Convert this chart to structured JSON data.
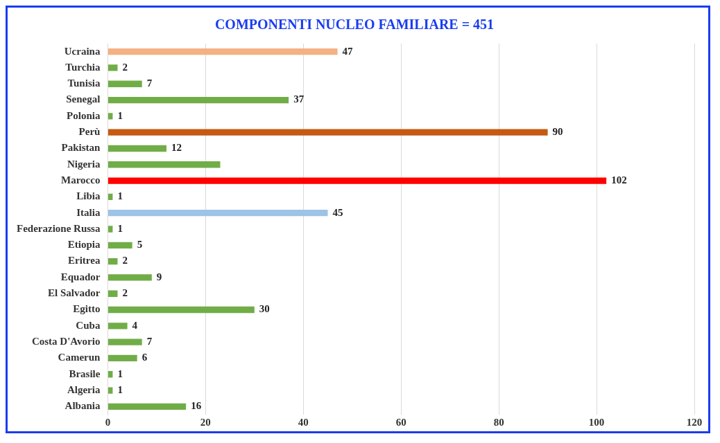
{
  "chart_data": {
    "type": "bar",
    "orientation": "horizontal",
    "title": "COMPONENTI NUCLEO FAMILIARE = 451",
    "categories": [
      "Ucraina",
      "Turchia",
      "Tunisia",
      "Senegal",
      "Polonia",
      "Perù",
      "Pakistan",
      "Nigeria",
      "Marocco",
      "Libia",
      "Italia",
      "Federazione Russa",
      "Etiopia",
      "Eritrea",
      "Equador",
      "El Salvador",
      "Egitto",
      "Cuba",
      "Costa D'Avorio",
      "Camerun",
      "Brasile",
      "Algeria",
      "Albania"
    ],
    "values": [
      47,
      2,
      7,
      37,
      1,
      90,
      12,
      23,
      102,
      1,
      45,
      1,
      5,
      2,
      9,
      2,
      30,
      4,
      7,
      6,
      1,
      1,
      16
    ],
    "value_labels": [
      "47",
      "2",
      "7",
      "37",
      "1",
      "90",
      "12",
      null,
      "102",
      "1",
      "45",
      "1",
      "5",
      "2",
      "9",
      "2",
      "30",
      "4",
      "7",
      "6",
      "1",
      "1",
      "16"
    ],
    "colors": [
      "#f4b183",
      "#70ad47",
      "#70ad47",
      "#70ad47",
      "#70ad47",
      "#c55a11",
      "#70ad47",
      "#70ad47",
      "#ff0000",
      "#70ad47",
      "#9dc3e6",
      "#70ad47",
      "#70ad47",
      "#70ad47",
      "#70ad47",
      "#70ad47",
      "#70ad47",
      "#70ad47",
      "#70ad47",
      "#70ad47",
      "#70ad47",
      "#70ad47",
      "#70ad47"
    ],
    "xlim": [
      0,
      120
    ],
    "xticks": [
      0,
      20,
      40,
      60,
      80,
      100,
      120
    ],
    "grid": "x",
    "legend": false
  }
}
